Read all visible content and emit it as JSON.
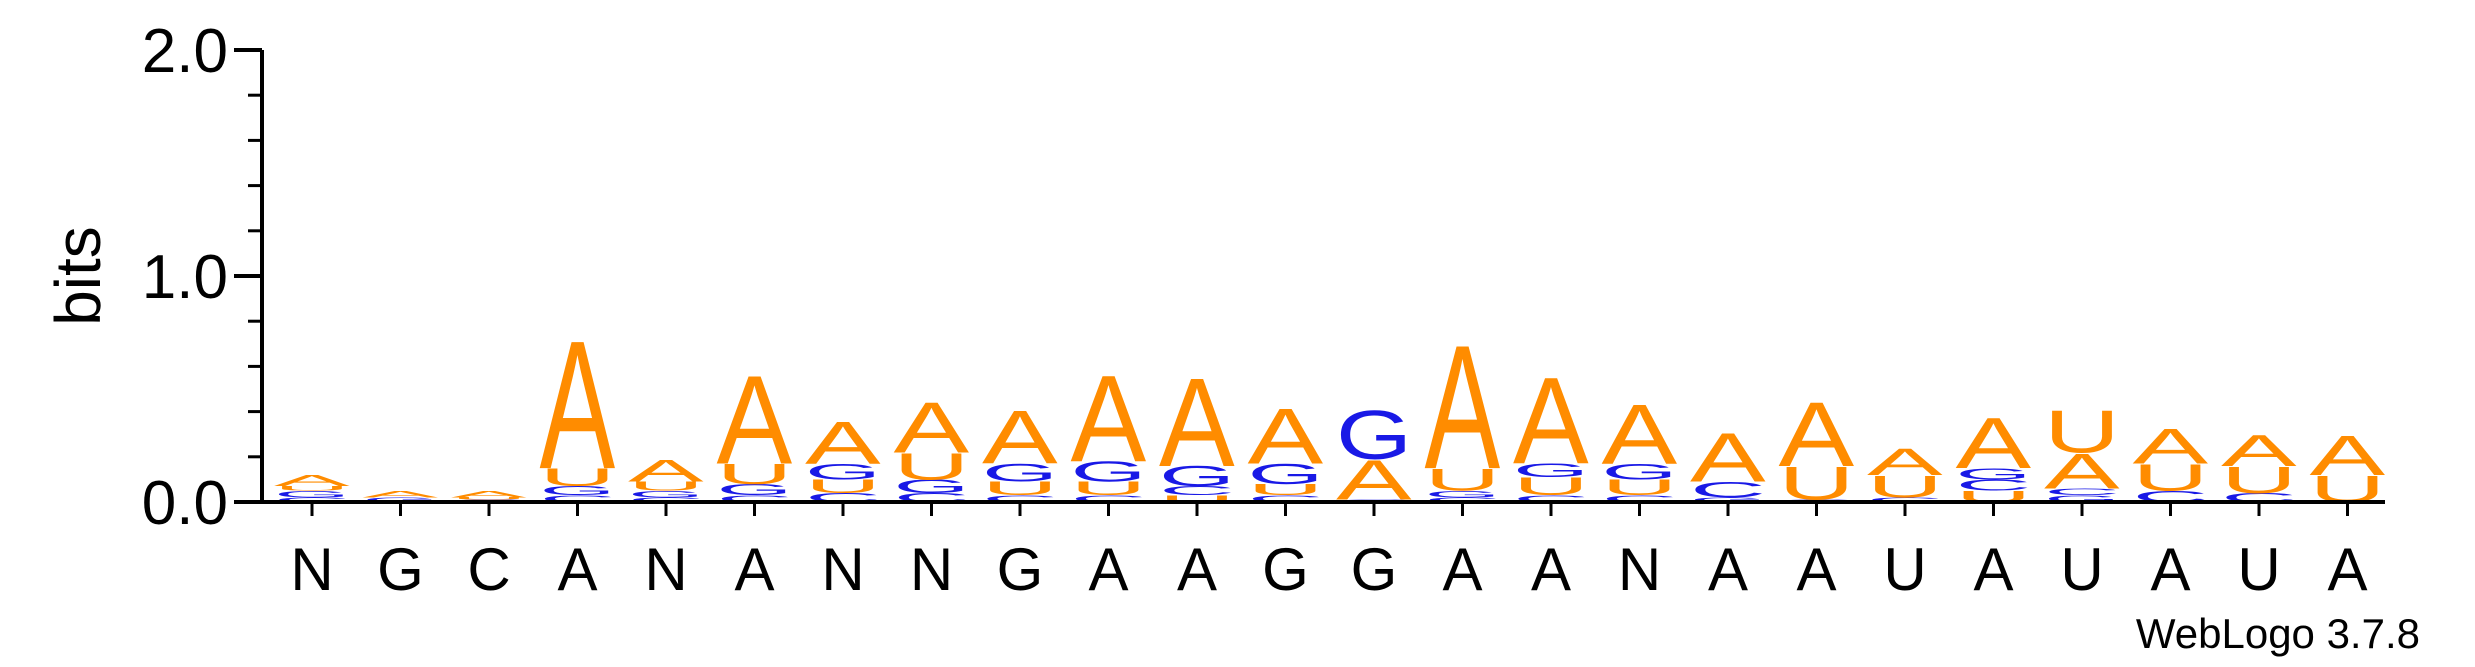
{
  "chart_data": {
    "type": "sequence-logo",
    "ylabel": "bits",
    "ylim": [
      0,
      2.0
    ],
    "yticks": [
      "0.0",
      "1.0",
      "2.0"
    ],
    "credit": "WebLogo 3.7.8",
    "colors": {
      "A": "#ff8c00",
      "U": "#ff8c00",
      "G": "#1919e6",
      "C": "#1919e6"
    },
    "positions": [
      {
        "consensus": "N",
        "stack": [
          [
            "C",
            0.02
          ],
          [
            "G",
            0.03
          ],
          [
            "U",
            0.02
          ],
          [
            "A",
            0.05
          ]
        ]
      },
      {
        "consensus": "G",
        "stack": [
          [
            "G",
            0.02
          ],
          [
            "A",
            0.03
          ]
        ]
      },
      {
        "consensus": "C",
        "stack": [
          [
            "C",
            0.01
          ],
          [
            "U",
            0.01
          ],
          [
            "A",
            0.03
          ]
        ]
      },
      {
        "consensus": "A",
        "stack": [
          [
            "C",
            0.03
          ],
          [
            "G",
            0.04
          ],
          [
            "U",
            0.08
          ],
          [
            "A",
            0.58
          ]
        ]
      },
      {
        "consensus": "N",
        "stack": [
          [
            "C",
            0.02
          ],
          [
            "G",
            0.03
          ],
          [
            "U",
            0.04
          ],
          [
            "A",
            0.1
          ]
        ]
      },
      {
        "consensus": "A",
        "stack": [
          [
            "C",
            0.03
          ],
          [
            "G",
            0.05
          ],
          [
            "U",
            0.09
          ],
          [
            "A",
            0.4
          ]
        ]
      },
      {
        "consensus": "N",
        "stack": [
          [
            "C",
            0.04
          ],
          [
            "U",
            0.06
          ],
          [
            "G",
            0.07
          ],
          [
            "A",
            0.19
          ]
        ]
      },
      {
        "consensus": "N",
        "stack": [
          [
            "C",
            0.04
          ],
          [
            "G",
            0.06
          ],
          [
            "U",
            0.12
          ],
          [
            "A",
            0.23
          ]
        ]
      },
      {
        "consensus": "G",
        "stack": [
          [
            "C",
            0.03
          ],
          [
            "U",
            0.06
          ],
          [
            "G",
            0.08
          ],
          [
            "A",
            0.24
          ]
        ]
      },
      {
        "consensus": "A",
        "stack": [
          [
            "C",
            0.03
          ],
          [
            "U",
            0.06
          ],
          [
            "G",
            0.09
          ],
          [
            "A",
            0.39
          ]
        ]
      },
      {
        "consensus": "A",
        "stack": [
          [
            "U",
            0.03
          ],
          [
            "C",
            0.04
          ],
          [
            "G",
            0.09
          ],
          [
            "A",
            0.4
          ]
        ]
      },
      {
        "consensus": "G",
        "stack": [
          [
            "C",
            0.03
          ],
          [
            "U",
            0.05
          ],
          [
            "G",
            0.09
          ],
          [
            "A",
            0.25
          ]
        ]
      },
      {
        "consensus": "G",
        "stack": [
          [
            "C",
            0.01
          ],
          [
            "A",
            0.18
          ],
          [
            "G",
            0.22
          ]
        ]
      },
      {
        "consensus": "A",
        "stack": [
          [
            "C",
            0.02
          ],
          [
            "G",
            0.03
          ],
          [
            "U",
            0.1
          ],
          [
            "A",
            0.56
          ]
        ]
      },
      {
        "consensus": "A",
        "stack": [
          [
            "C",
            0.03
          ],
          [
            "U",
            0.08
          ],
          [
            "G",
            0.06
          ],
          [
            "A",
            0.39
          ]
        ]
      },
      {
        "consensus": "N",
        "stack": [
          [
            "C",
            0.03
          ],
          [
            "U",
            0.07
          ],
          [
            "G",
            0.07
          ],
          [
            "A",
            0.27
          ]
        ]
      },
      {
        "consensus": "A",
        "stack": [
          [
            "G",
            0.02
          ],
          [
            "C",
            0.07
          ],
          [
            "A",
            0.22
          ]
        ]
      },
      {
        "consensus": "A",
        "stack": [
          [
            "C",
            0.01
          ],
          [
            "U",
            0.15
          ],
          [
            "A",
            0.29
          ]
        ]
      },
      {
        "consensus": "U",
        "stack": [
          [
            "C",
            0.02
          ],
          [
            "U",
            0.1
          ],
          [
            "A",
            0.12
          ]
        ]
      },
      {
        "consensus": "A",
        "stack": [
          [
            "U",
            0.05
          ],
          [
            "C",
            0.05
          ],
          [
            "G",
            0.05
          ],
          [
            "A",
            0.23
          ]
        ]
      },
      {
        "consensus": "U",
        "stack": [
          [
            "G",
            0.03
          ],
          [
            "C",
            0.03
          ],
          [
            "A",
            0.16
          ],
          [
            "U",
            0.19
          ]
        ]
      },
      {
        "consensus": "A",
        "stack": [
          [
            "C",
            0.05
          ],
          [
            "U",
            0.12
          ],
          [
            "A",
            0.16
          ]
        ]
      },
      {
        "consensus": "U",
        "stack": [
          [
            "C",
            0.04
          ],
          [
            "U",
            0.12
          ],
          [
            "A",
            0.14
          ]
        ]
      },
      {
        "consensus": "A",
        "stack": [
          [
            "U",
            0.12
          ],
          [
            "A",
            0.18
          ]
        ]
      }
    ]
  }
}
